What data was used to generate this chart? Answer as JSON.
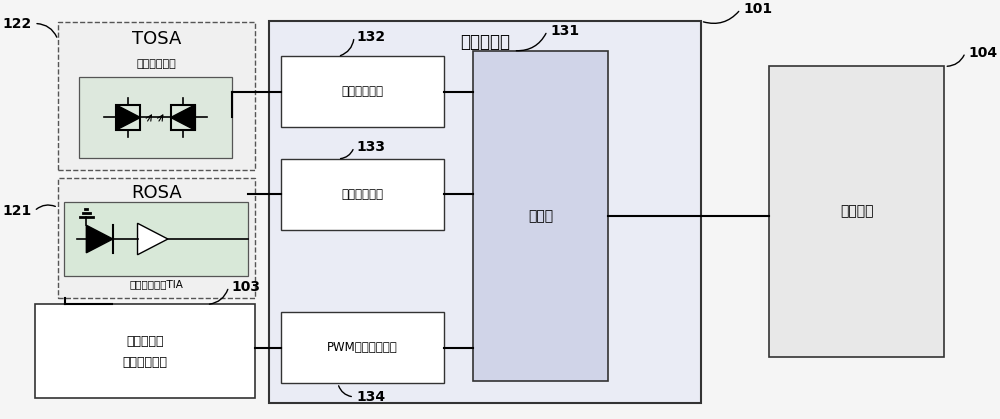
{
  "chip_title": "光模块芯片",
  "ref_101": "101",
  "ref_122": "122",
  "ref_121": "121",
  "ref_103": "103",
  "ref_132": "132",
  "ref_131": "131",
  "ref_133": "133",
  "ref_134": "134",
  "ref_104": "104",
  "lbl_tosa": "TOSA",
  "lbl_rosa": "ROSA",
  "lbl_laser_src": "激光发射光源",
  "lbl_photo_tia": "光电二极管和TIA",
  "lbl_laser_drv": "激光驱动电路",
  "lbl_limit_amp": "限幅放大电路",
  "lbl_pwm_ctrl": "PWM输出控制电路",
  "lbl_micro": "微控器",
  "lbl_storage": "存储器件",
  "lbl_photo_volt_1": "光电二极管",
  "lbl_photo_volt_2": "电压控制电路",
  "bg_color": "#f5f5f5",
  "chip_bg": "#eaecf5",
  "tosa_bg": "#f0f0f0",
  "rosa_inner_bg": "#d8e8d8",
  "tosa_inner_bg": "#dde8dd",
  "white": "#ffffff",
  "light_gray": "#e8e8e8",
  "box_ec": "#333333",
  "dashed_ec": "#555555"
}
